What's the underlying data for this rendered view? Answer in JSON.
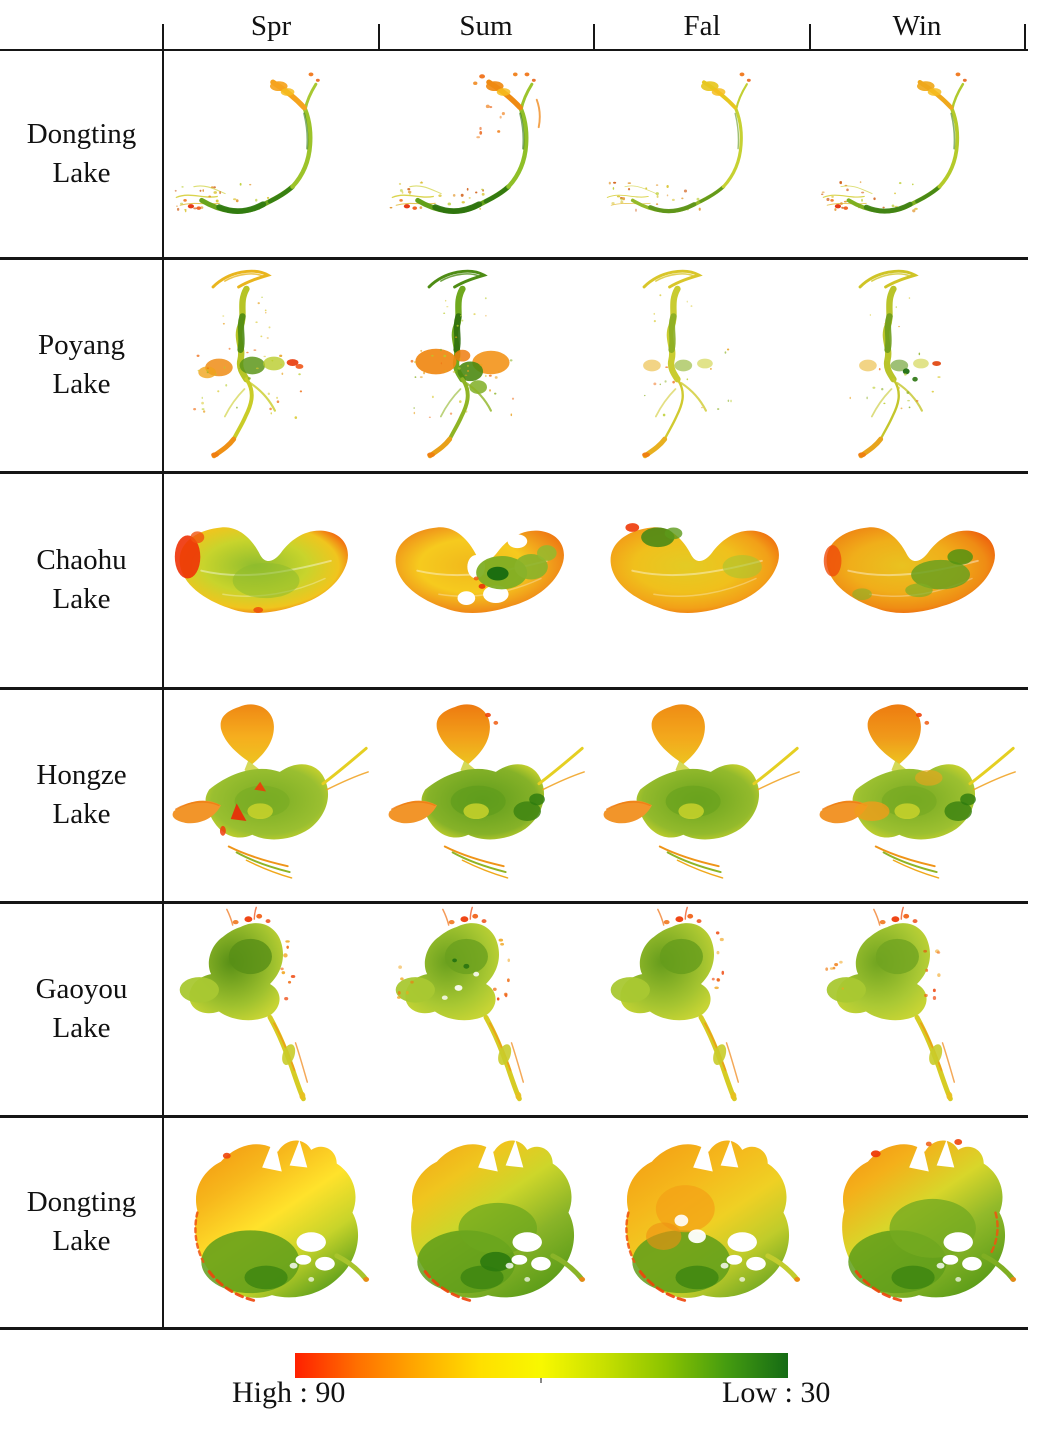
{
  "figure": {
    "description": "Grid of seasonal raster maps for five lakes (six rows), colored from high (red) to low (green)"
  },
  "header": {
    "seasons": [
      {
        "label": "Spr"
      },
      {
        "label": "Sum"
      },
      {
        "label": "Fal"
      },
      {
        "label": "Win"
      }
    ]
  },
  "rows": [
    {
      "lake": "dongting-channel",
      "line1": "Dongting",
      "line2": "Lake"
    },
    {
      "lake": "poyang",
      "line1": "Poyang",
      "line2": "Lake"
    },
    {
      "lake": "chaohu",
      "line1": "Chaohu",
      "line2": "Lake"
    },
    {
      "lake": "hongze",
      "line1": "Hongze",
      "line2": "Lake"
    },
    {
      "lake": "gaoyou",
      "line1": "Gaoyou",
      "line2": "Lake"
    },
    {
      "lake": "dongting-full",
      "line1": "Dongting",
      "line2": "Lake"
    }
  ],
  "legend": {
    "high_label": "High : 90",
    "low_label": "Low : 30",
    "high_value": 90,
    "low_value": 30,
    "gradient_stops": [
      "#ff2000",
      "#ff6f00",
      "#ffaa00",
      "#ffdf00",
      "#f8f800",
      "#c8e000",
      "#8cc400",
      "#459c10",
      "#156b15"
    ]
  },
  "colors": {
    "line": "#161616",
    "text": "#111111",
    "background": "#ffffff"
  }
}
